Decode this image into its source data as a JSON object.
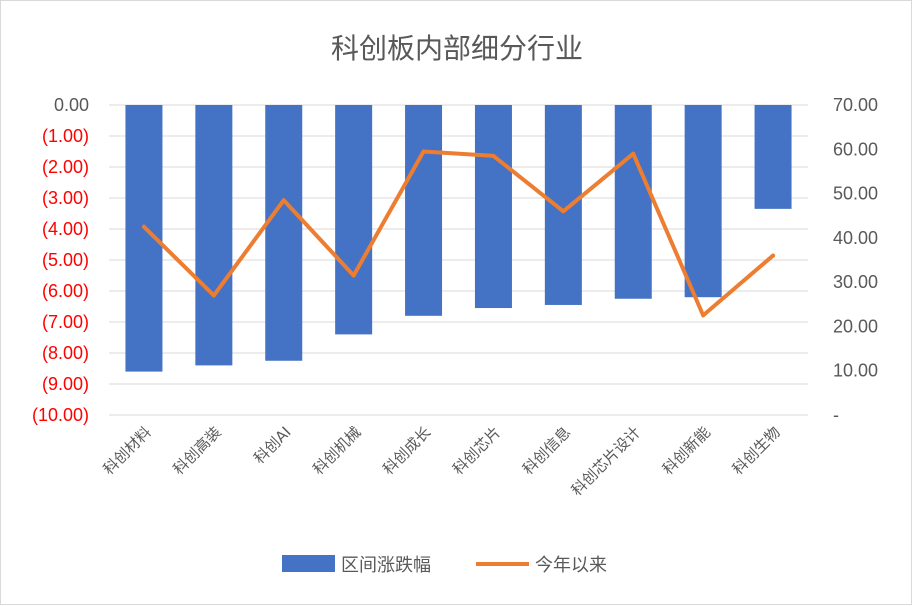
{
  "chart_data": {
    "type": "bar",
    "title": "科创板内部细分行业",
    "categories": [
      "科创材料",
      "科创高装",
      "科创AI",
      "科创机械",
      "科创成长",
      "科创芯片",
      "科创信息",
      "科创芯片设计",
      "科创新能",
      "科创生物"
    ],
    "series": [
      {
        "name": "区间涨跌幅",
        "type": "bar",
        "axis": "left",
        "color": "#4472c4",
        "values": [
          -8.6,
          -8.4,
          -8.25,
          -7.4,
          -6.8,
          -6.55,
          -6.45,
          -6.25,
          -6.2,
          -3.35
        ]
      },
      {
        "name": "今年以来",
        "type": "line",
        "axis": "right",
        "color": "#ed7d31",
        "values": [
          42.5,
          27.0,
          48.5,
          31.5,
          59.5,
          58.5,
          46.0,
          59.0,
          22.5,
          36.0
        ]
      }
    ],
    "y_left": {
      "ylim": [
        -10,
        0
      ],
      "ticks": [
        0,
        -1,
        -2,
        -3,
        -4,
        -5,
        -6,
        -7,
        -8,
        -9,
        -10
      ],
      "tick_labels": [
        "0.00",
        "(1.00)",
        "(2.00)",
        "(3.00)",
        "(4.00)",
        "(5.00)",
        "(6.00)",
        "(7.00)",
        "(8.00)",
        "(9.00)",
        "(10.00)"
      ],
      "positive_color": "#595959",
      "negative_color": "#ff0000"
    },
    "y_right": {
      "ylim": [
        0,
        70
      ],
      "ticks": [
        70,
        60,
        50,
        40,
        30,
        20,
        10,
        0
      ],
      "tick_labels": [
        "70.00",
        "60.00",
        "50.00",
        "40.00",
        "30.00",
        "20.00",
        "10.00",
        "-"
      ]
    },
    "grid": true,
    "legend_position": "bottom"
  }
}
